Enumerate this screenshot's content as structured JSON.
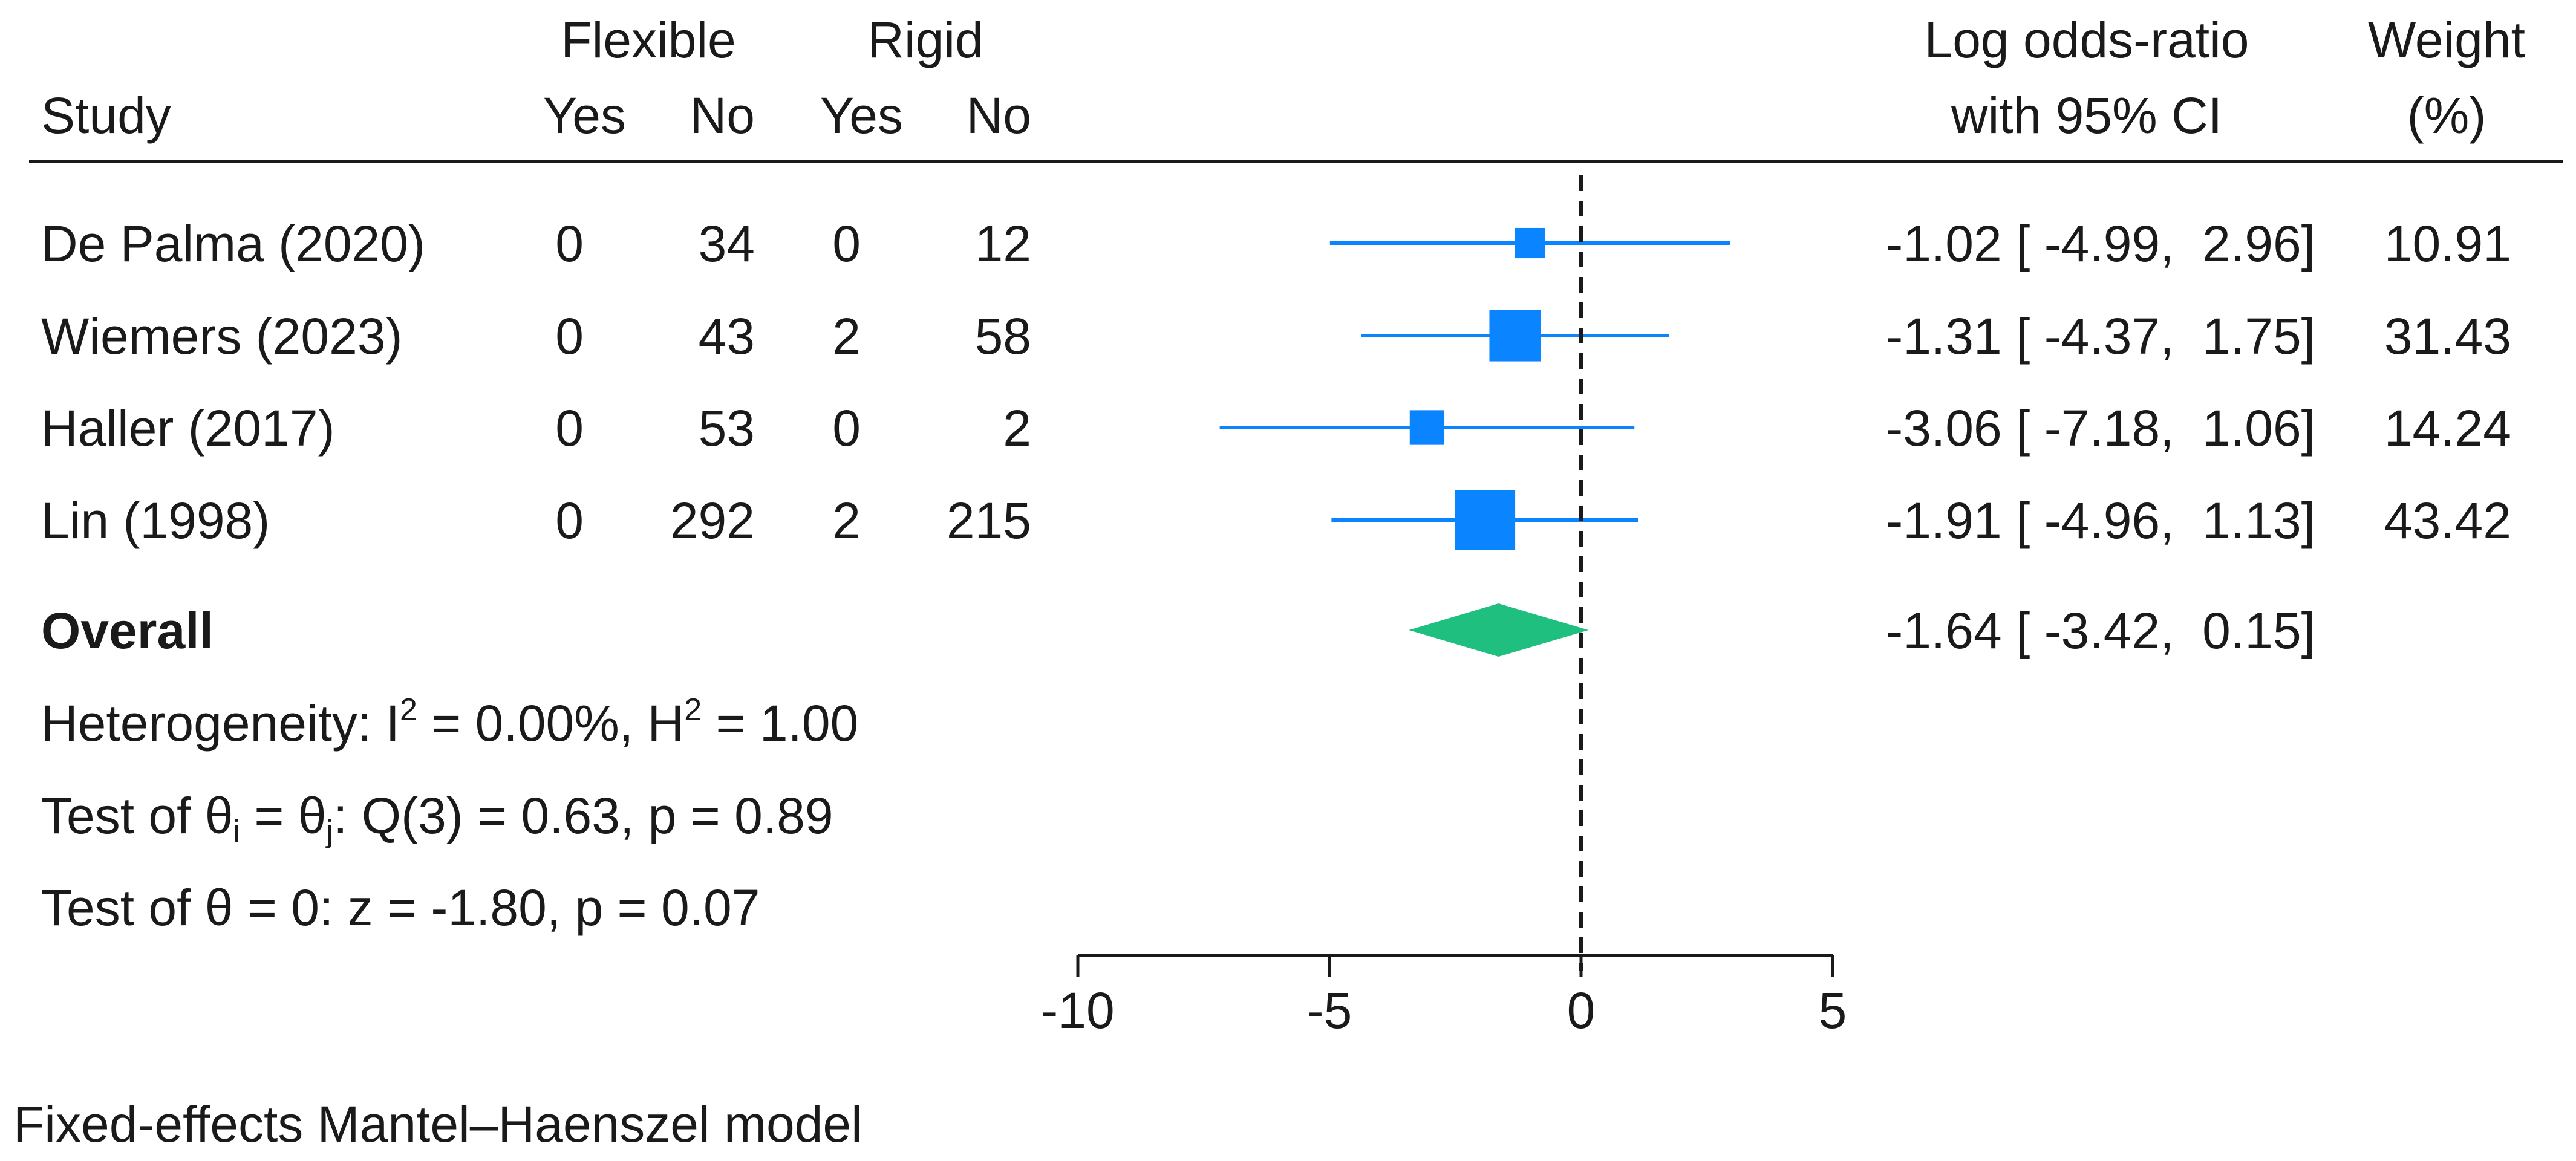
{
  "chart_data": {
    "type": "forest",
    "header": {
      "flexible": "Flexible",
      "rigid": "Rigid",
      "study": "Study",
      "yes": "Yes",
      "no": "No",
      "effect_line1": "Log odds-ratio",
      "effect_line2": "with 95% CI",
      "weight_line1": "Weight",
      "weight_line2": "(%)"
    },
    "studies": [
      {
        "name": "De Palma (2020)",
        "flex_yes": "0",
        "flex_no": "34",
        "rigid_yes": "0",
        "rigid_no": "12",
        "estimate": -1.02,
        "lower": -4.99,
        "upper": 2.96,
        "ci_text": "-1.02 [ -4.99,  2.96]",
        "weight": 10.91,
        "weight_text": "10.91"
      },
      {
        "name": "Wiemers (2023)",
        "flex_yes": "0",
        "flex_no": "43",
        "rigid_yes": "2",
        "rigid_no": "58",
        "estimate": -1.31,
        "lower": -4.37,
        "upper": 1.75,
        "ci_text": "-1.31 [ -4.37,  1.75]",
        "weight": 31.43,
        "weight_text": "31.43"
      },
      {
        "name": "Haller (2017)",
        "flex_yes": "0",
        "flex_no": "53",
        "rigid_yes": "0",
        "rigid_no": "2",
        "estimate": -3.06,
        "lower": -7.18,
        "upper": 1.06,
        "ci_text": "-3.06 [ -7.18,  1.06]",
        "weight": 14.24,
        "weight_text": "14.24"
      },
      {
        "name": "Lin (1998)",
        "flex_yes": "0",
        "flex_no": "292",
        "rigid_yes": "2",
        "rigid_no": "215",
        "estimate": -1.91,
        "lower": -4.96,
        "upper": 1.13,
        "ci_text": "-1.91 [ -4.96,  1.13]",
        "weight": 43.42,
        "weight_text": "43.42"
      }
    ],
    "overall": {
      "label": "Overall",
      "estimate": -1.64,
      "lower": -3.42,
      "upper": 0.15,
      "ci_text": "-1.64 [ -3.42,  0.15]"
    },
    "heterogeneity": {
      "prefix": "Heterogeneity: I",
      "sup1": "2",
      "middle": " = 0.00%, H",
      "sup2": "2",
      "suffix": " = 1.00"
    },
    "test_homogeneity": {
      "prefix": "Test of θ",
      "sub_i": "i",
      "equals": " = θ",
      "sub_j": "j",
      "suffix": ": Q(3) = 0.63, p = 0.89"
    },
    "test_zero": "Test of θ = 0: z = -1.80, p = 0.07",
    "xaxis": {
      "ticks": [
        -10,
        -5,
        0,
        5
      ],
      "tick_labels": [
        "-10",
        "-5",
        "0",
        "5"
      ],
      "range": [
        -10,
        5
      ]
    },
    "null_line": 0,
    "model_note": "Fixed-effects Mantel–Haenszel model",
    "colors": {
      "study_marker": "#0a84ff",
      "overall_diamond": "#1fbf80",
      "text": "#1a1a1a",
      "axis": "#1a1a1a"
    }
  }
}
